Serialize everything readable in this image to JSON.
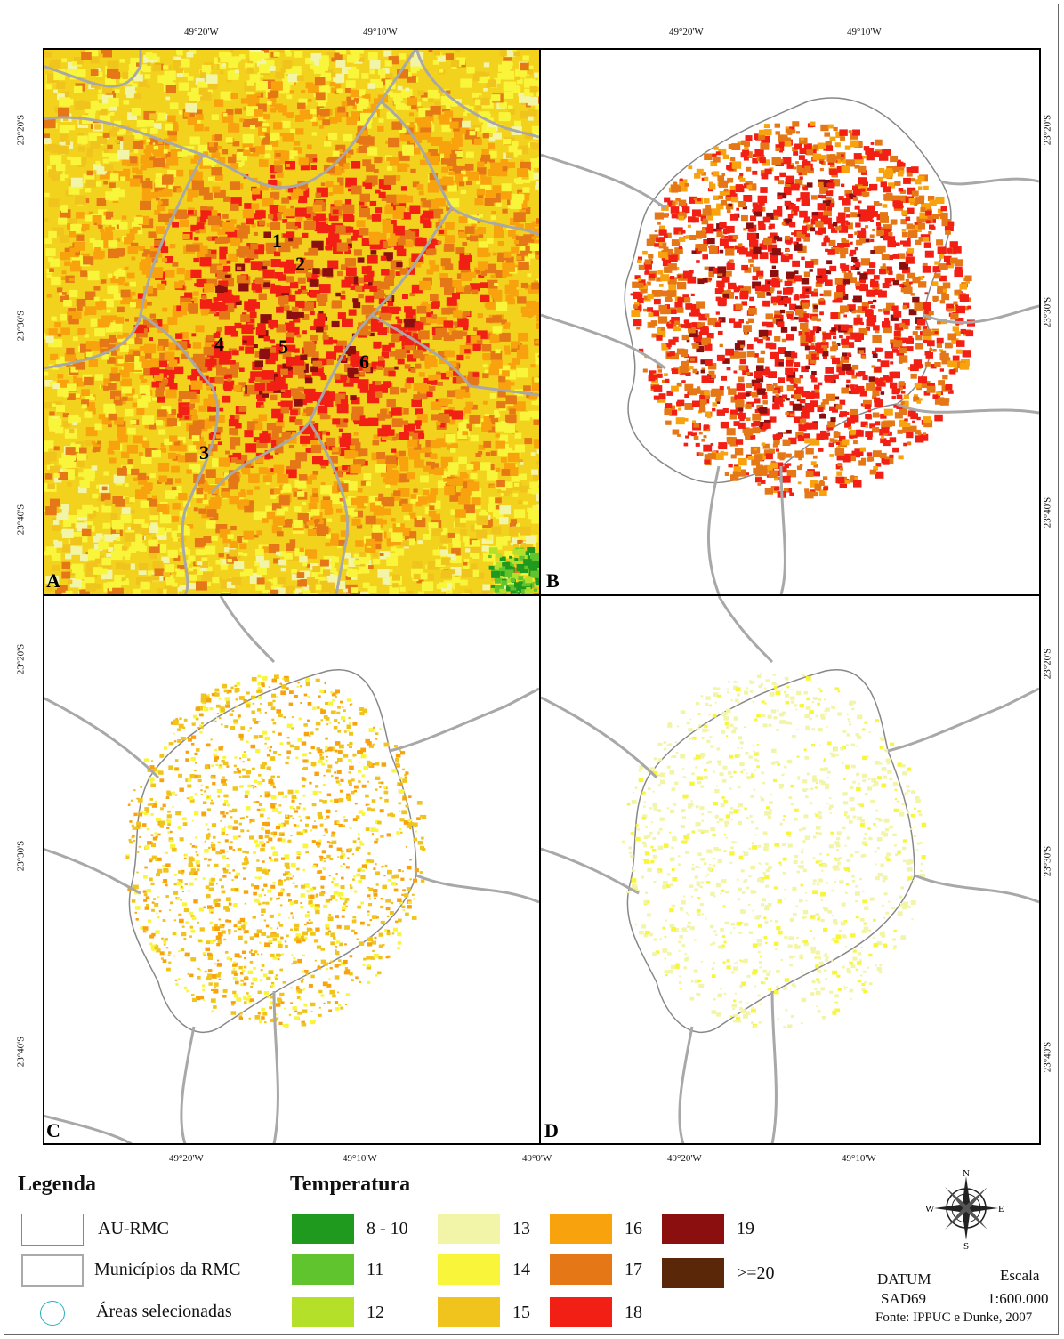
{
  "axis": {
    "top_lon": [
      "49°20'W",
      "49°10'W",
      "49°20'W",
      "49°10'W"
    ],
    "bottom_lon": [
      "49°20'W",
      "49°10'W",
      "49°0'W",
      "49°20'W",
      "49°10'W"
    ],
    "left_lat_top": [
      "23°20'S",
      "23°30'S",
      "23°40'S"
    ],
    "left_lat_bottom": [
      "23°20'S",
      "23°30'S",
      "23°40'S"
    ],
    "right_lat_top": [
      "23°20'S",
      "23°30'S",
      "23°40'S"
    ],
    "right_lat_bottom": [
      "23°20'S",
      "23°30'S",
      "23°40'S"
    ]
  },
  "panels": [
    {
      "letter": "A"
    },
    {
      "letter": "B"
    },
    {
      "letter": "C"
    },
    {
      "letter": "D"
    }
  ],
  "points": [
    "1",
    "2",
    "3",
    "4",
    "5",
    "6"
  ],
  "legend": {
    "title": "Legenda",
    "items": [
      {
        "label": "AU-RMC",
        "border": "#888888"
      },
      {
        "label": "Municípios da RMC",
        "border": "#aaaaaa"
      },
      {
        "label": "Áreas selecionadas",
        "circle": "#2ab0c0"
      }
    ]
  },
  "temperature": {
    "title": "Temperatura",
    "classes": [
      {
        "label": "8 - 10",
        "color": "#1f9a1f"
      },
      {
        "label": "11",
        "color": "#5fc42e"
      },
      {
        "label": "12",
        "color": "#b5e02a"
      },
      {
        "label": "13",
        "color": "#f2f5a8"
      },
      {
        "label": "14",
        "color": "#f8f53a"
      },
      {
        "label": "15",
        "color": "#f0c41c"
      },
      {
        "label": "16",
        "color": "#f8a30e"
      },
      {
        "label": "17",
        "color": "#e57716"
      },
      {
        "label": "18",
        "color": "#f21f15"
      },
      {
        "label": "19",
        "color": "#8c0f0f"
      },
      {
        "label": ">=20",
        "color": "#5a2808"
      }
    ]
  },
  "compass": {
    "n": "N",
    "s": "S",
    "e": "E",
    "w": "W"
  },
  "datum": {
    "label": "DATUM",
    "value": "SAD69",
    "scale_label": "Escala",
    "scale_value": "1:600.000",
    "source": "Fonte: IPPUC e Dunke, 2007"
  }
}
